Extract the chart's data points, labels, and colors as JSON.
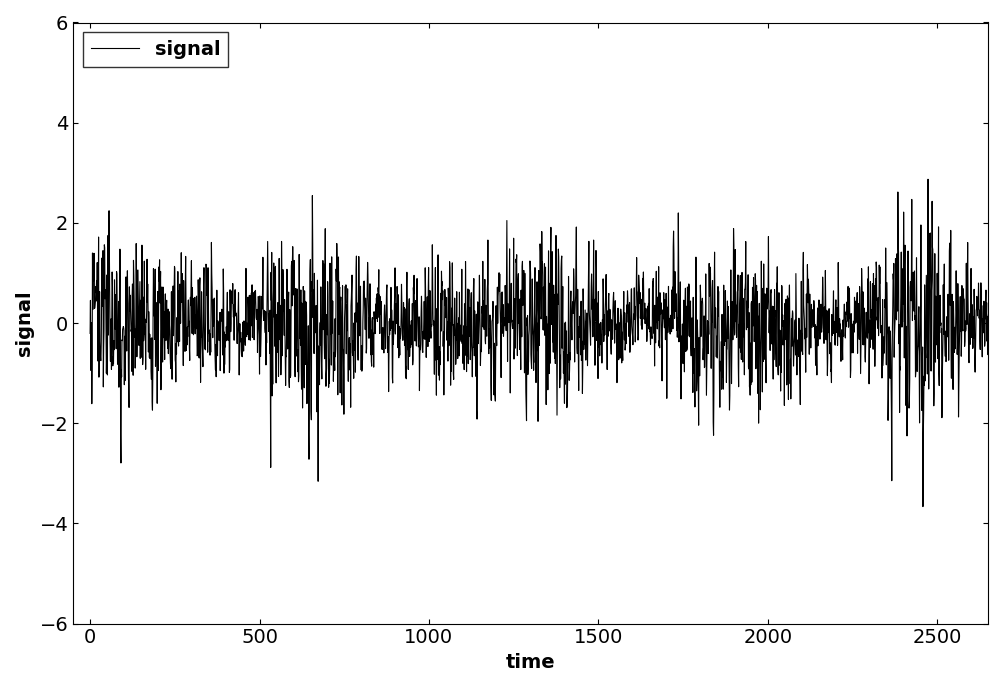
{
  "title": "",
  "xlabel": "time",
  "ylabel": "signal",
  "xlim": [
    -50,
    2650
  ],
  "ylim": [
    -6,
    6
  ],
  "xticks": [
    0,
    500,
    1000,
    1500,
    2000,
    2500
  ],
  "yticks": [
    -6,
    -4,
    -2,
    0,
    2,
    4,
    6
  ],
  "legend_label": "signal",
  "line_color": "#000000",
  "line_width": 0.8,
  "n_points": 2700,
  "seed": 12345,
  "figsize": [
    10.03,
    6.87
  ],
  "dpi": 100,
  "background_color": "#ffffff",
  "font_size": 14
}
